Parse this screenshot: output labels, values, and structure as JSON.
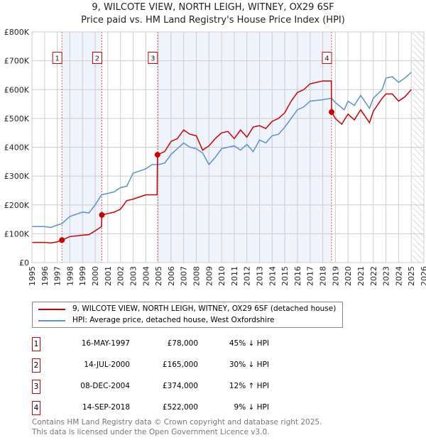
{
  "title_line1": "9, WILCOTE VIEW, NORTH LEIGH, WITNEY, OX29 6SF",
  "title_line2": "Price paid vs. HM Land Registry's House Price Index (HPI)",
  "colors": {
    "property": "#cc0000",
    "hpi": "#5b8fd0",
    "band": "#eef3fc"
  },
  "chart_data": {
    "type": "line",
    "xlim": [
      1995,
      2026
    ],
    "ylim": [
      0,
      800000
    ],
    "x_ticks": [
      1995,
      1996,
      1997,
      1998,
      1999,
      2000,
      2001,
      2002,
      2003,
      2004,
      2005,
      2006,
      2007,
      2008,
      2009,
      2010,
      2011,
      2012,
      2013,
      2014,
      2015,
      2016,
      2017,
      2018,
      2019,
      2020,
      2021,
      2022,
      2023,
      2024,
      2025,
      2026
    ],
    "y_ticks": [
      {
        "v": 0,
        "label": "£0"
      },
      {
        "v": 100000,
        "label": "£100K"
      },
      {
        "v": 200000,
        "label": "£200K"
      },
      {
        "v": 300000,
        "label": "£300K"
      },
      {
        "v": 400000,
        "label": "£400K"
      },
      {
        "v": 500000,
        "label": "£500K"
      },
      {
        "v": 600000,
        "label": "£600K"
      },
      {
        "v": 700000,
        "label": "£700K"
      },
      {
        "v": 800000,
        "label": "£800K"
      }
    ],
    "grid": true,
    "shaded_periods": [
      [
        1997.37,
        2000.53
      ],
      [
        2004.93,
        2018.7
      ]
    ],
    "forecast_hatch_from": 2025.1,
    "series": [
      {
        "name": "9, WILCOTE VIEW, NORTH LEIGH, WITNEY, OX29 6SF (detached house)",
        "color": "#cc0000",
        "x": [
          1995,
          1996,
          1996.5,
          1997,
          1997.37,
          1998,
          1999,
          1999.5,
          2000,
          2000.5,
          2000.53,
          2001,
          2001.5,
          2002,
          2002.5,
          2003,
          2004,
          2004.9,
          2004.93,
          2005.5,
          2006,
          2006.5,
          2007,
          2007.5,
          2008,
          2008.5,
          2009,
          2009.5,
          2010,
          2010.5,
          2011,
          2011.5,
          2012,
          2012.5,
          2013,
          2013.5,
          2014,
          2014.5,
          2015,
          2015.5,
          2016,
          2016.5,
          2017,
          2017.5,
          2018,
          2018.68,
          2018.7,
          2019,
          2019.5,
          2020,
          2020.5,
          2021,
          2021.7,
          2022,
          2022.7,
          2023,
          2023.5,
          2024,
          2024.5,
          2025
        ],
        "y": [
          70000,
          70000,
          68000,
          72000,
          78000,
          90000,
          95000,
          97000,
          110000,
          125000,
          165000,
          170000,
          175000,
          185000,
          215000,
          220000,
          235000,
          235000,
          374000,
          385000,
          420000,
          430000,
          460000,
          445000,
          440000,
          390000,
          405000,
          430000,
          450000,
          455000,
          430000,
          460000,
          435000,
          470000,
          475000,
          465000,
          490000,
          500000,
          520000,
          560000,
          590000,
          600000,
          620000,
          625000,
          630000,
          630000,
          522000,
          500000,
          480000,
          515000,
          495000,
          530000,
          485000,
          525000,
          570000,
          585000,
          585000,
          560000,
          575000,
          600000
        ]
      },
      {
        "name": "HPI: Average price, detached house, West Oxfordshire",
        "color": "#5b8fd0",
        "x": [
          1995,
          1996,
          1996.5,
          1997,
          1997.37,
          1998,
          1999,
          1999.5,
          2000,
          2000.5,
          2001,
          2001.5,
          2002,
          2002.5,
          2003,
          2004,
          2004.5,
          2005,
          2005.5,
          2006,
          2007,
          2007.5,
          2008,
          2008.5,
          2009,
          2009.5,
          2010,
          2011,
          2011.5,
          2012,
          2012.5,
          2013,
          2013.5,
          2014,
          2014.5,
          2015,
          2015.5,
          2016,
          2016.5,
          2017,
          2018,
          2018.7,
          2019,
          2019.7,
          2020,
          2020.5,
          2021,
          2021.7,
          2022,
          2022.7,
          2023,
          2023.5,
          2024,
          2024.5,
          2025
        ],
        "y": [
          125000,
          125000,
          122000,
          130000,
          135000,
          160000,
          175000,
          172000,
          200000,
          235000,
          240000,
          245000,
          260000,
          265000,
          310000,
          325000,
          340000,
          340000,
          345000,
          375000,
          415000,
          400000,
          395000,
          380000,
          340000,
          365000,
          395000,
          405000,
          390000,
          410000,
          385000,
          425000,
          415000,
          440000,
          445000,
          470000,
          500000,
          530000,
          540000,
          560000,
          565000,
          570000,
          555000,
          530000,
          560000,
          545000,
          580000,
          535000,
          570000,
          600000,
          640000,
          645000,
          625000,
          640000,
          660000
        ]
      }
    ],
    "sales": [
      {
        "id": "1",
        "x": 1997.37,
        "y": 78000
      },
      {
        "id": "2",
        "x": 2000.53,
        "y": 165000
      },
      {
        "id": "3",
        "x": 2004.93,
        "y": 374000
      },
      {
        "id": "4",
        "x": 2018.7,
        "y": 522000
      }
    ]
  },
  "legend": {
    "property": "9, WILCOTE VIEW, NORTH LEIGH, WITNEY, OX29 6SF (detached house)",
    "hpi": "HPI: Average price, detached house, West Oxfordshire"
  },
  "transactions": [
    {
      "id": "1",
      "date": "16-MAY-1997",
      "price": "£78,000",
      "hpi": "45% ↓ HPI"
    },
    {
      "id": "2",
      "date": "14-JUL-2000",
      "price": "£165,000",
      "hpi": "30% ↓ HPI"
    },
    {
      "id": "3",
      "date": "08-DEC-2004",
      "price": "£374,000",
      "hpi": "12% ↑ HPI"
    },
    {
      "id": "4",
      "date": "14-SEP-2018",
      "price": "£522,000",
      "hpi": "9% ↓ HPI"
    }
  ],
  "footer_line1": "Contains HM Land Registry data © Crown copyright and database right 2025.",
  "footer_line2": "This data is licensed under the Open Government Licence v3.0."
}
